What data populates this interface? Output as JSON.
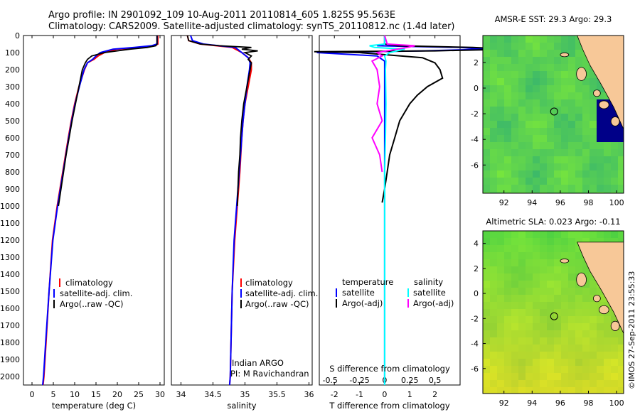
{
  "header": {
    "line1": "Argo profile: IN 2901092_109 10-Aug-2011 20110814_605 1.825S 95.563E",
    "line2": "Climatology: CARS2009. Satellite-adjusted climatology: synTS_20110812.nc (1.4d later)"
  },
  "colors": {
    "climatology": "#ff0000",
    "satellite": "#0000ff",
    "argo": "#000000",
    "salinity_satellite": "#00ffff",
    "salinity_argo": "#ff00ff",
    "land": "#f7c898",
    "missing": "#ffffff"
  },
  "stamp": "©IMOS 27-Sep-2011 23:55:33",
  "credits": {
    "line1": "Indian ARGO",
    "line2": "PI: M Ravichandran"
  },
  "depth_axis": {
    "ylim": [
      0,
      2050
    ],
    "ticks": [
      "0",
      "100",
      "200",
      "300",
      "400",
      "500",
      "600",
      "700",
      "800",
      "900",
      "1000",
      "1100",
      "1200",
      "1300",
      "1400",
      "1500",
      "1600",
      "1700",
      "1800",
      "1900",
      "2000"
    ]
  },
  "chart_data": [
    {
      "type": "line",
      "xlabel": "temperature (deg C)",
      "xlim": [
        -2,
        31
      ],
      "xticks": [
        "0",
        "5",
        "10",
        "15",
        "20",
        "25",
        "30"
      ],
      "legend": [
        "climatology",
        "satellite-adj. clim.",
        "Argo(..raw -QC)"
      ],
      "series": [
        {
          "name": "climatology",
          "depth": [
            0,
            50,
            60,
            70,
            80,
            100,
            120,
            140,
            160,
            200,
            300,
            400,
            500,
            600,
            800,
            1000,
            1200,
            1500,
            1800,
            2000,
            2050
          ],
          "values": [
            29.5,
            29.5,
            28.8,
            26,
            20,
            17,
            15.5,
            14.5,
            13,
            12.3,
            11,
            10,
            9.2,
            8.5,
            7.2,
            5.9,
            4.8,
            4,
            3.3,
            2.8,
            2.6
          ]
        },
        {
          "name": "satellite-adj. clim.",
          "depth": [
            0,
            50,
            60,
            70,
            80,
            100,
            120,
            140,
            160,
            200,
            300,
            400,
            500,
            600,
            800,
            1000,
            1200,
            1500,
            1800,
            2000,
            2050
          ],
          "values": [
            29.3,
            29.3,
            28,
            24,
            19,
            16,
            15,
            14.2,
            13,
            12.2,
            11.1,
            10.1,
            9.3,
            8.6,
            7.3,
            6,
            4.9,
            4,
            3.2,
            2.7,
            2.5
          ]
        },
        {
          "name": "Argo(..raw -QC)",
          "depth": [
            0,
            50,
            60,
            70,
            80,
            100,
            120,
            140,
            160,
            200,
            250,
            300,
            350,
            400,
            500,
            600,
            700,
            800,
            900,
            1000
          ],
          "values": [
            29.3,
            29.3,
            29,
            27,
            23,
            17,
            14,
            13,
            12.5,
            11.8,
            11.4,
            11,
            10.6,
            10.2,
            9.4,
            8.7,
            8,
            7.4,
            6.8,
            6.2
          ]
        }
      ]
    },
    {
      "type": "line",
      "xlabel": "salinity",
      "xlim": [
        33.85,
        36.05
      ],
      "xticks": [
        "34",
        "34.5",
        "35",
        "35.5",
        "36"
      ],
      "legend": [
        "climatology",
        "satellite-adj. clim.",
        "Argo(..raw -QC)"
      ],
      "series": [
        {
          "name": "climatology",
          "depth": [
            0,
            30,
            50,
            70,
            100,
            130,
            160,
            200,
            300,
            400,
            500,
            600,
            800,
            1000,
            1200,
            1500,
            2000,
            2050
          ],
          "values": [
            34.1,
            34.12,
            34.3,
            34.8,
            34.95,
            35.05,
            35.1,
            35.1,
            35.05,
            35.0,
            34.97,
            34.95,
            34.92,
            34.88,
            34.84,
            34.8,
            34.77,
            34.76
          ]
        },
        {
          "name": "satellite-adj. clim.",
          "depth": [
            0,
            30,
            50,
            70,
            100,
            130,
            160,
            200,
            300,
            400,
            500,
            600,
            800,
            1000,
            1200,
            1500,
            2000,
            2050
          ],
          "values": [
            34.15,
            34.18,
            34.35,
            34.85,
            34.95,
            35.05,
            35.08,
            35.07,
            35.03,
            35.0,
            34.97,
            34.95,
            34.91,
            34.87,
            34.83,
            34.8,
            34.77,
            34.76
          ]
        },
        {
          "name": "Argo(..raw -QC)",
          "depth": [
            0,
            30,
            50,
            60,
            70,
            80,
            90,
            100,
            120,
            140,
            160,
            200,
            300,
            400,
            500,
            600,
            700,
            800,
            900,
            1000
          ],
          "values": [
            34.1,
            34.12,
            34.3,
            34.6,
            35.1,
            34.95,
            35.2,
            35.0,
            35.1,
            35.05,
            35.1,
            35.08,
            35.03,
            34.98,
            34.95,
            34.93,
            34.92,
            34.9,
            34.89,
            34.88
          ]
        }
      ]
    },
    {
      "type": "line",
      "xlabel": "T difference from climatology",
      "xlabel2": "S difference from climatology",
      "xlim": [
        -2.6,
        3.0
      ],
      "xticks": [
        "-2",
        "-1",
        "0",
        "1",
        "2"
      ],
      "xticks2": [
        "-0.5",
        "-0.25",
        "0",
        "0.25",
        "0.5"
      ],
      "legend_titles": [
        "temperature",
        "salinity"
      ],
      "legend": [
        "satellite",
        "Argo(-adj)",
        "satellite",
        "Argo(-adj)"
      ],
      "series": [
        {
          "name": "T satellite",
          "depth": [
            0,
            50,
            60,
            70,
            80,
            90,
            100,
            120,
            150,
            200,
            400,
            600,
            800,
            1000,
            1500,
            2050
          ],
          "values": [
            0,
            0,
            -0.3,
            3,
            4,
            1.5,
            -2.7,
            -0.3,
            0,
            0,
            0,
            0,
            0,
            0,
            0,
            0
          ]
        },
        {
          "name": "T Argo(-adj)",
          "depth": [
            0,
            50,
            60,
            70,
            80,
            90,
            95,
            100,
            130,
            160,
            200,
            250,
            300,
            350,
            400,
            450,
            500,
            600,
            700,
            800,
            900,
            980
          ],
          "values": [
            0,
            0,
            0.5,
            3.5,
            5,
            2,
            -2.8,
            -1.0,
            1.5,
            2,
            2.2,
            2.3,
            1.7,
            1.3,
            1.0,
            0.8,
            0.6,
            0.4,
            0.2,
            0.1,
            0,
            -0.1
          ]
        },
        {
          "name": "S satellite",
          "depth": [
            0,
            50,
            60,
            70,
            80,
            100,
            120,
            150,
            200,
            400,
            600,
            800,
            1000,
            1500,
            2050
          ],
          "values": [
            0,
            0,
            -0.6,
            -0.4,
            0.8,
            0.2,
            0,
            0.05,
            0.03,
            0.05,
            0.03,
            0,
            0,
            0,
            0
          ]
        },
        {
          "name": "S Argo(-adj)",
          "depth": [
            0,
            50,
            60,
            70,
            80,
            100,
            120,
            150,
            200,
            300,
            400,
            500,
            600,
            700,
            800
          ],
          "values": [
            0,
            0.1,
            1.2,
            0.9,
            0.5,
            -0.3,
            -0.1,
            -0.5,
            -0.3,
            -0.2,
            -0.3,
            -0.1,
            -0.5,
            -0.2,
            -0.1
          ]
        }
      ]
    },
    {
      "type": "heatmap",
      "title": "AMSR-E SST: 29.3 Argo: 29.3",
      "xticks": [
        "92",
        "94",
        "96",
        "98",
        "100"
      ],
      "yticks": [
        "2",
        "0",
        "-2",
        "-4",
        "-6"
      ],
      "xlim": [
        90.5,
        100.5
      ],
      "ylim": [
        -8.2,
        4.1
      ],
      "marker": {
        "lon": 95.563,
        "lat": -1.825
      }
    },
    {
      "type": "heatmap",
      "title": "Altimetric SLA: 0.023 Argo: -0.11",
      "xticks": [
        "92",
        "94",
        "96",
        "98",
        "100"
      ],
      "yticks": [
        "4",
        "2",
        "0",
        "-2",
        "-4",
        "-6"
      ],
      "xlim": [
        90.5,
        100.5
      ],
      "ylim": [
        -8.0,
        5.0
      ],
      "marker": {
        "lon": 95.563,
        "lat": -1.825
      }
    }
  ]
}
